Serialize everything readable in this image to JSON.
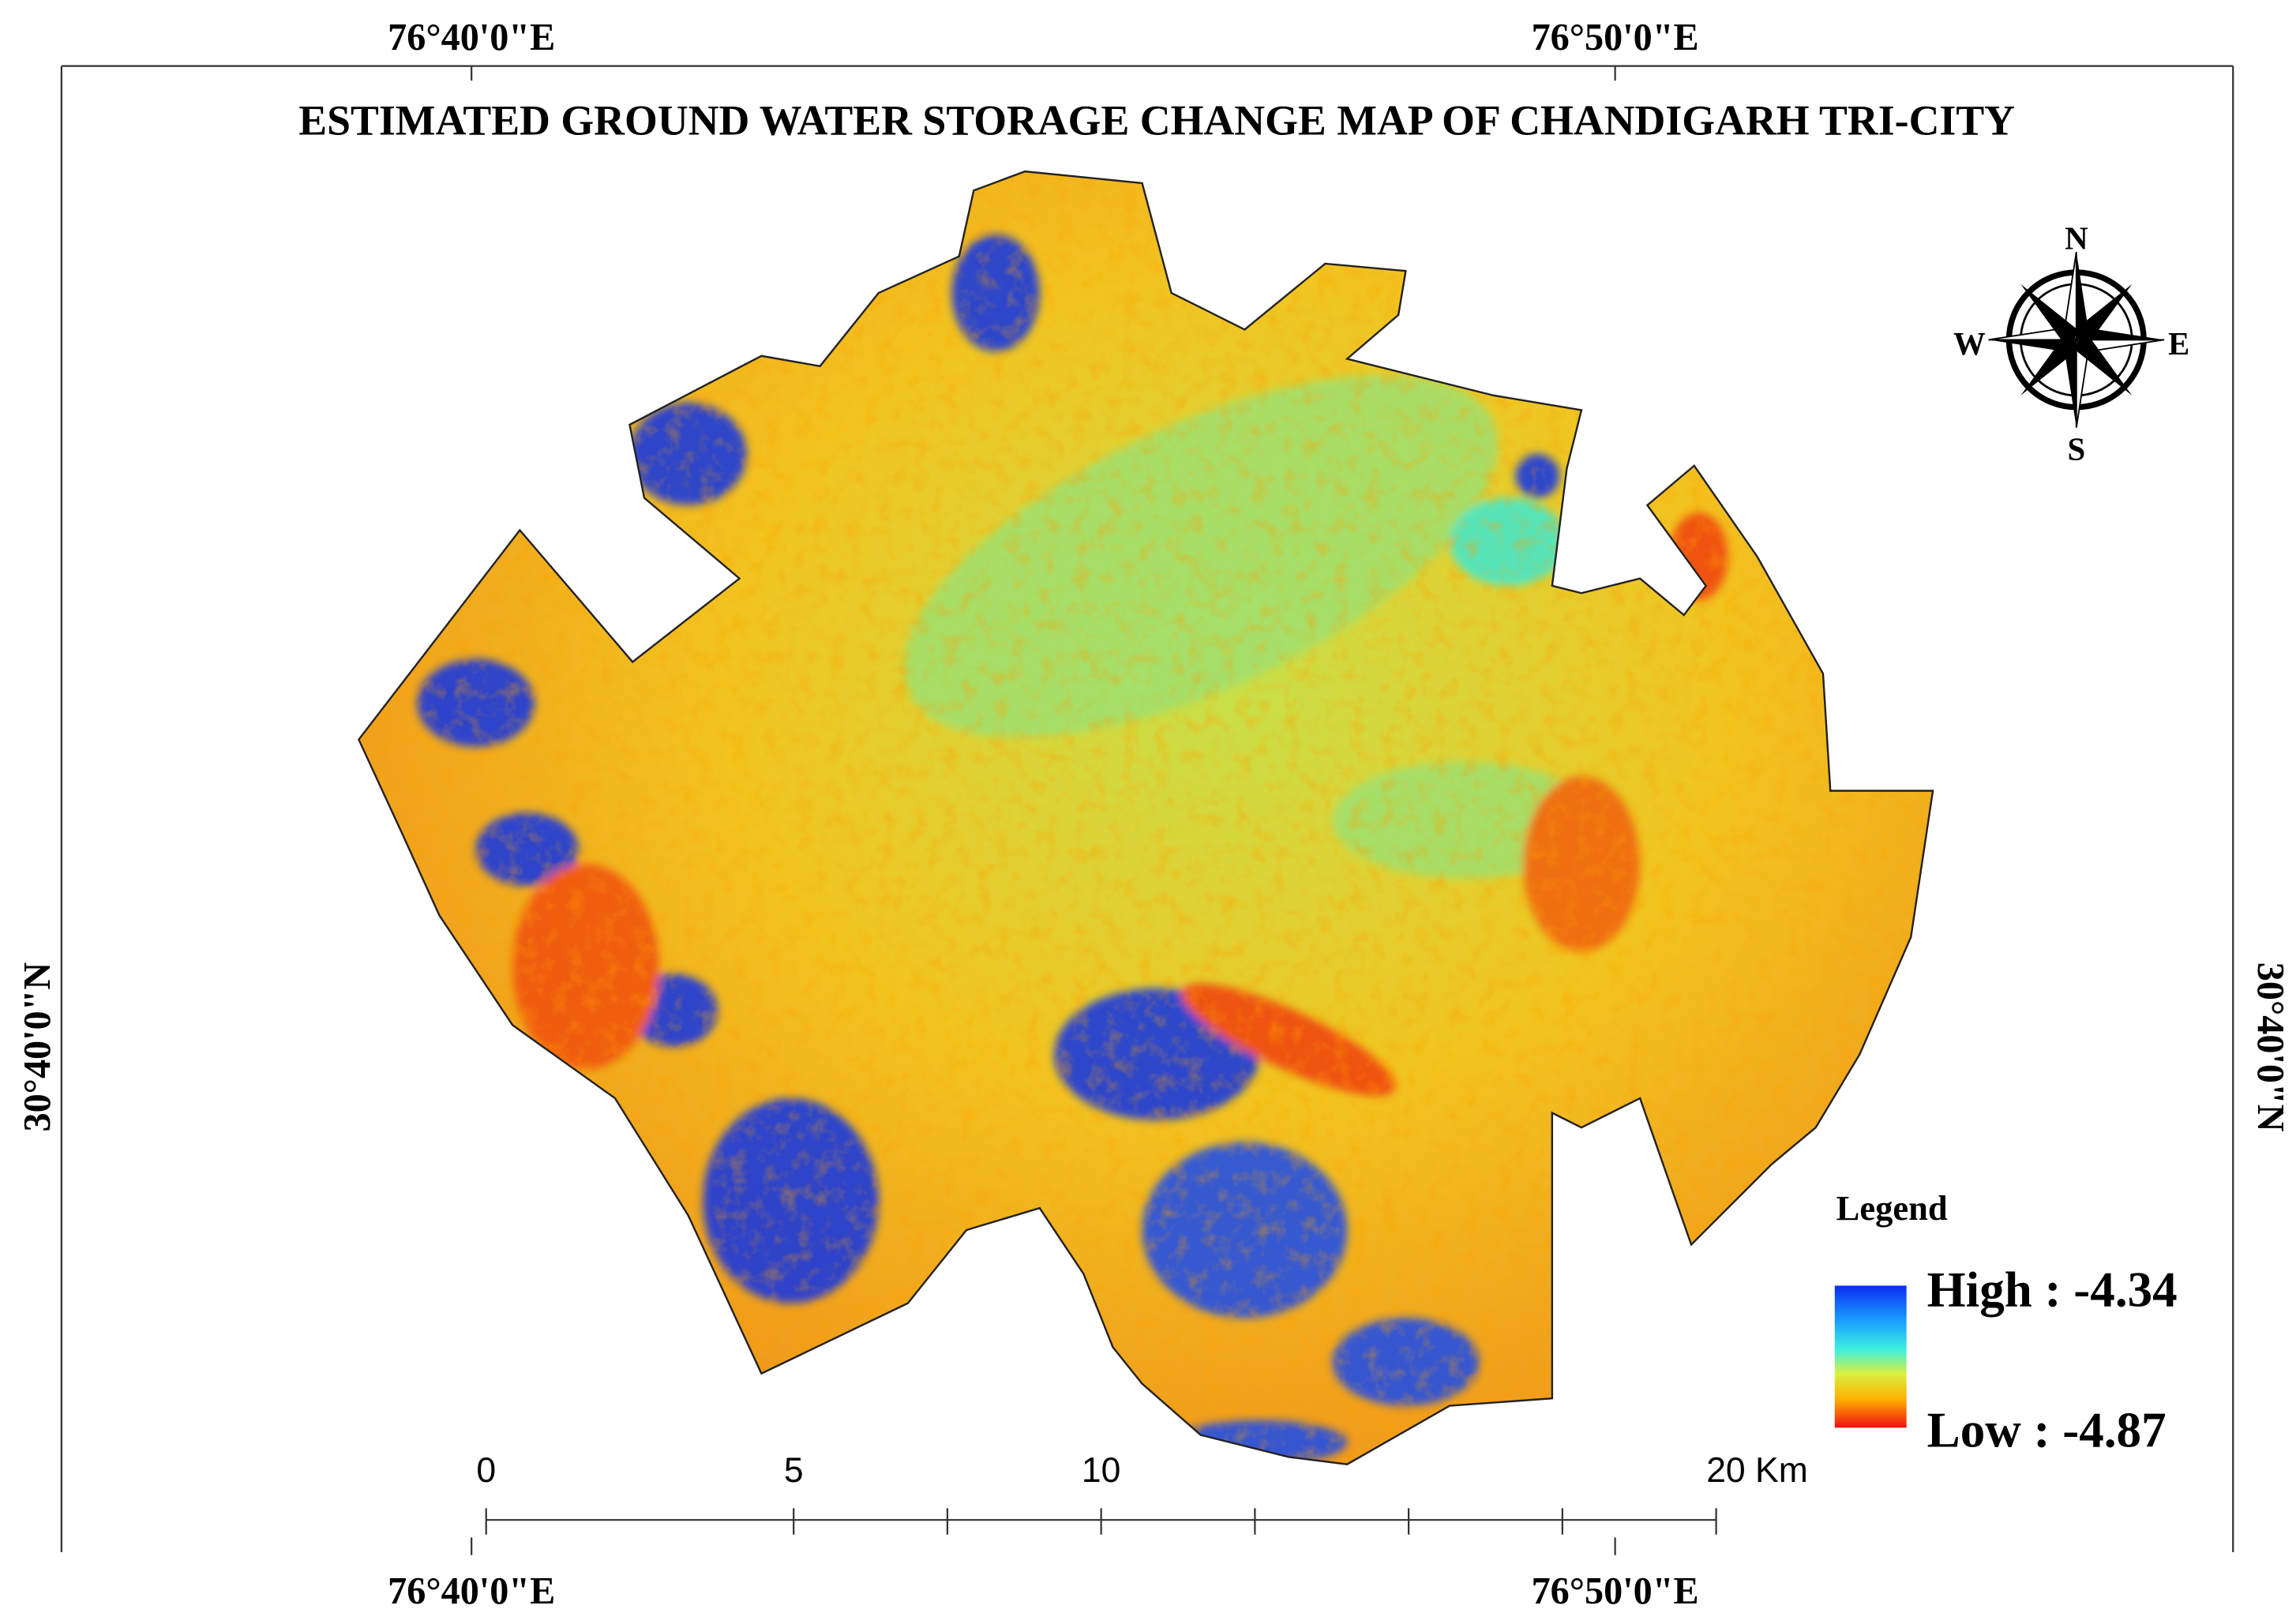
{
  "title": "ESTIMATED GROUND WATER STORAGE CHANGE MAP OF CHANDIGARH TRI-CITY",
  "graticule": {
    "top": [
      "76°40'0\"E",
      "76°50'0\"E"
    ],
    "bottom": [
      "76°40'0\"E",
      "76°50'0\"E"
    ],
    "left": "30°40'0\"N",
    "right": "30°40'0\"N"
  },
  "legend": {
    "title": "Legend",
    "high": "High : -4.34",
    "low": "Low : -4.87"
  },
  "scale_bar": {
    "labels": [
      "0",
      "5",
      "10",
      "20 Km"
    ]
  },
  "north_arrow": {
    "n": "N",
    "s": "S",
    "e": "E",
    "w": "W"
  }
}
